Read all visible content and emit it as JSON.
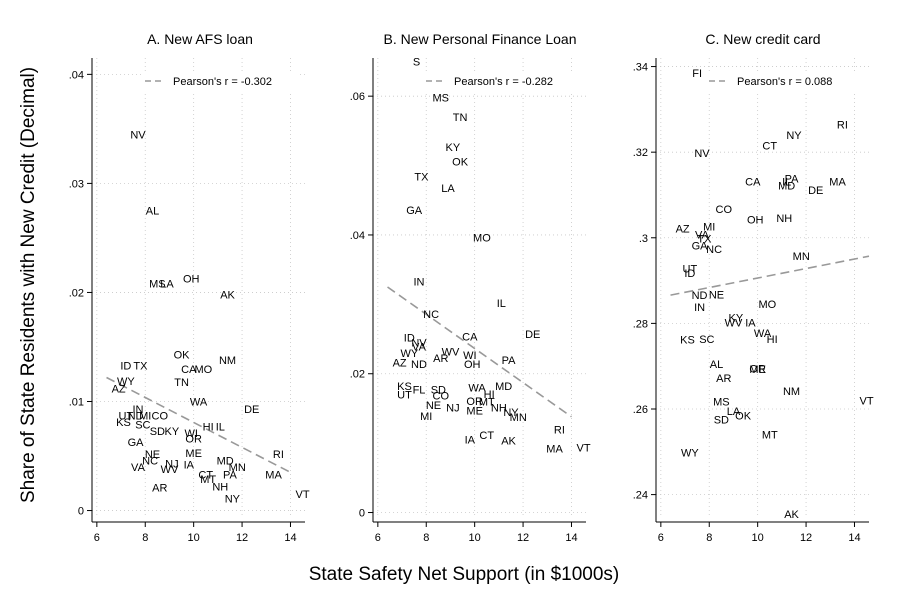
{
  "figure": {
    "ylabel": "Share of State Residents with New Credit (Decimal)",
    "xlabel": "State Safety Net Support (in $1000s)"
  },
  "chart_data": [
    {
      "type": "scatter",
      "title": "A. New AFS loan",
      "xlabel": "",
      "ylabel": "",
      "xlim": [
        5.8,
        14.6
      ],
      "ylim": [
        -0.0005,
        0.0415
      ],
      "xticks": [
        6,
        8,
        10,
        12,
        14
      ],
      "xtick_labels": [
        "6",
        "8",
        "10",
        "12",
        "14"
      ],
      "yticks": [
        0,
        0.01,
        0.02,
        0.03,
        0.04
      ],
      "ytick_labels": [
        "0",
        ".01",
        ".02",
        ".03",
        ".04"
      ],
      "grid": true,
      "legend": {
        "label": "Pearson's r = -0.302",
        "placement": "top-right"
      },
      "fit_line": {
        "x": [
          6.4,
          14.0
        ],
        "y": [
          0.0122,
          0.0035
        ]
      },
      "points": [
        {
          "label": "NV",
          "x": 7.7,
          "y": 0.0345
        },
        {
          "label": "AL",
          "x": 8.3,
          "y": 0.0275
        },
        {
          "label": "MS",
          "x": 8.5,
          "y": 0.0208
        },
        {
          "label": "LA",
          "x": 8.9,
          "y": 0.0208
        },
        {
          "label": "OH",
          "x": 9.9,
          "y": 0.0213
        },
        {
          "label": "AK",
          "x": 11.4,
          "y": 0.0198
        },
        {
          "label": "OK",
          "x": 9.5,
          "y": 0.0143
        },
        {
          "label": "NM",
          "x": 11.4,
          "y": 0.0138
        },
        {
          "label": "ID",
          "x": 7.2,
          "y": 0.0133
        },
        {
          "label": "TX",
          "x": 7.8,
          "y": 0.0133
        },
        {
          "label": "CA",
          "x": 9.8,
          "y": 0.013
        },
        {
          "label": "MO",
          "x": 10.4,
          "y": 0.013
        },
        {
          "label": "WY",
          "x": 7.2,
          "y": 0.0119
        },
        {
          "label": "TN",
          "x": 9.5,
          "y": 0.0118
        },
        {
          "label": "AZ",
          "x": 6.9,
          "y": 0.0112
        },
        {
          "label": "WA",
          "x": 10.2,
          "y": 0.01
        },
        {
          "label": "DE",
          "x": 12.4,
          "y": 0.0093
        },
        {
          "label": "IN",
          "x": 7.7,
          "y": 0.0093
        },
        {
          "label": "UT",
          "x": 7.2,
          "y": 0.0087
        },
        {
          "label": "ND",
          "x": 7.6,
          "y": 0.0087
        },
        {
          "label": "MI",
          "x": 8.0,
          "y": 0.0087
        },
        {
          "label": "CO",
          "x": 8.6,
          "y": 0.0087
        },
        {
          "label": "KS",
          "x": 7.1,
          "y": 0.0081
        },
        {
          "label": "SC",
          "x": 7.9,
          "y": 0.0079
        },
        {
          "label": "HI",
          "x": 10.6,
          "y": 0.0077
        },
        {
          "label": "IL",
          "x": 11.1,
          "y": 0.0077
        },
        {
          "label": "SD",
          "x": 8.5,
          "y": 0.0073
        },
        {
          "label": "KY",
          "x": 9.1,
          "y": 0.0073
        },
        {
          "label": "WI",
          "x": 9.9,
          "y": 0.0071
        },
        {
          "label": "GA",
          "x": 7.6,
          "y": 0.0063
        },
        {
          "label": "OR",
          "x": 10.0,
          "y": 0.0066
        },
        {
          "label": "NE",
          "x": 8.3,
          "y": 0.0052
        },
        {
          "label": "ME",
          "x": 10.0,
          "y": 0.0053
        },
        {
          "label": "RI",
          "x": 13.5,
          "y": 0.0052
        },
        {
          "label": "NC",
          "x": 8.2,
          "y": 0.0046
        },
        {
          "label": "NJ",
          "x": 9.1,
          "y": 0.0043
        },
        {
          "label": "IA",
          "x": 9.8,
          "y": 0.0042
        },
        {
          "label": "MD",
          "x": 11.3,
          "y": 0.0046
        },
        {
          "label": "VA",
          "x": 7.7,
          "y": 0.004
        },
        {
          "label": "WV",
          "x": 9.0,
          "y": 0.0038
        },
        {
          "label": "MN",
          "x": 11.8,
          "y": 0.004
        },
        {
          "label": "CT",
          "x": 10.5,
          "y": 0.0033
        },
        {
          "label": "PA",
          "x": 11.5,
          "y": 0.0033
        },
        {
          "label": "MA",
          "x": 13.3,
          "y": 0.0033
        },
        {
          "label": "MT",
          "x": 10.6,
          "y": 0.0029
        },
        {
          "label": "NH",
          "x": 11.1,
          "y": 0.0022
        },
        {
          "label": "AR",
          "x": 8.6,
          "y": 0.0021
        },
        {
          "label": "VT",
          "x": 14.5,
          "y": 0.0015
        },
        {
          "label": "NY",
          "x": 11.6,
          "y": 0.0011
        }
      ]
    },
    {
      "type": "scatter",
      "title": "B. New Personal Finance Loan",
      "xlabel": "",
      "ylabel": "",
      "xlim": [
        5.8,
        14.6
      ],
      "ylim": [
        -0.0005,
        0.0655
      ],
      "xticks": [
        6,
        8,
        10,
        12,
        14
      ],
      "xtick_labels": [
        "6",
        "8",
        "10",
        "12",
        "14"
      ],
      "yticks": [
        0,
        0.02,
        0.04,
        0.06
      ],
      "ytick_labels": [
        "0",
        ".02",
        ".04",
        ".06"
      ],
      "grid": true,
      "legend": {
        "label": "Pearson's r = -0.282",
        "placement": "top-right"
      },
      "fit_line": {
        "x": [
          6.4,
          14.0
        ],
        "y": [
          0.0325,
          0.0138
        ]
      },
      "points": [
        {
          "label": "S",
          "x": 7.6,
          "y": 0.065
        },
        {
          "label": "MS",
          "x": 8.6,
          "y": 0.0598
        },
        {
          "label": "TN",
          "x": 9.4,
          "y": 0.057
        },
        {
          "label": "KY",
          "x": 9.1,
          "y": 0.0527
        },
        {
          "label": "OK",
          "x": 9.4,
          "y": 0.0506
        },
        {
          "label": "TX",
          "x": 7.8,
          "y": 0.0484
        },
        {
          "label": "LA",
          "x": 8.9,
          "y": 0.0468
        },
        {
          "label": "GA",
          "x": 7.5,
          "y": 0.0436
        },
        {
          "label": "MO",
          "x": 10.3,
          "y": 0.0396
        },
        {
          "label": "IN",
          "x": 7.7,
          "y": 0.0333
        },
        {
          "label": "IL",
          "x": 11.1,
          "y": 0.0302
        },
        {
          "label": "NC",
          "x": 8.2,
          "y": 0.0286
        },
        {
          "label": "DE",
          "x": 12.4,
          "y": 0.0257
        },
        {
          "label": "ID",
          "x": 7.3,
          "y": 0.0252
        },
        {
          "label": "CA",
          "x": 9.8,
          "y": 0.0254
        },
        {
          "label": "NV",
          "x": 7.7,
          "y": 0.0245
        },
        {
          "label": "VA",
          "x": 7.7,
          "y": 0.0239
        },
        {
          "label": "WY",
          "x": 7.3,
          "y": 0.023
        },
        {
          "label": "WV",
          "x": 9.0,
          "y": 0.0232
        },
        {
          "label": "WI",
          "x": 9.8,
          "y": 0.0227
        },
        {
          "label": "PA",
          "x": 11.4,
          "y": 0.022
        },
        {
          "label": "AR",
          "x": 8.6,
          "y": 0.0223
        },
        {
          "label": "AZ",
          "x": 6.9,
          "y": 0.0216
        },
        {
          "label": "ND",
          "x": 7.7,
          "y": 0.0214
        },
        {
          "label": "OH",
          "x": 9.9,
          "y": 0.0214
        },
        {
          "label": "KS",
          "x": 7.1,
          "y": 0.0182
        },
        {
          "label": "FL",
          "x": 7.7,
          "y": 0.0177
        },
        {
          "label": "SD",
          "x": 8.5,
          "y": 0.0177
        },
        {
          "label": "WA",
          "x": 10.1,
          "y": 0.018
        },
        {
          "label": "MD",
          "x": 11.2,
          "y": 0.0182
        },
        {
          "label": "UT",
          "x": 7.1,
          "y": 0.017
        },
        {
          "label": "CO",
          "x": 8.6,
          "y": 0.0169
        },
        {
          "label": "HI",
          "x": 10.6,
          "y": 0.0171
        },
        {
          "label": "OR",
          "x": 10.0,
          "y": 0.0161
        },
        {
          "label": "MT",
          "x": 10.5,
          "y": 0.016
        },
        {
          "label": "NE",
          "x": 8.3,
          "y": 0.0155
        },
        {
          "label": "NJ",
          "x": 9.1,
          "y": 0.0151
        },
        {
          "label": "ME",
          "x": 10.0,
          "y": 0.0147
        },
        {
          "label": "NH",
          "x": 11.0,
          "y": 0.0151
        },
        {
          "label": "NY",
          "x": 11.5,
          "y": 0.0145
        },
        {
          "label": "MI",
          "x": 8.0,
          "y": 0.0139
        },
        {
          "label": "MN",
          "x": 11.8,
          "y": 0.0138
        },
        {
          "label": "RI",
          "x": 13.5,
          "y": 0.012
        },
        {
          "label": "CT",
          "x": 10.5,
          "y": 0.0112
        },
        {
          "label": "IA",
          "x": 9.8,
          "y": 0.0105
        },
        {
          "label": "AK",
          "x": 11.4,
          "y": 0.0104
        },
        {
          "label": "MA",
          "x": 13.3,
          "y": 0.0092
        },
        {
          "label": "VT",
          "x": 14.5,
          "y": 0.0094
        }
      ]
    },
    {
      "type": "scatter",
      "title": "C. New credit card",
      "xlabel": "",
      "ylabel": "",
      "xlim": [
        5.8,
        14.6
      ],
      "ylim": [
        0.235,
        0.342
      ],
      "xticks": [
        6,
        8,
        10,
        12,
        14
      ],
      "xtick_labels": [
        "6",
        "8",
        "10",
        "12",
        "14"
      ],
      "yticks": [
        0.24,
        0.26,
        0.28,
        0.3,
        0.32,
        0.34
      ],
      "ytick_labels": [
        ".24",
        ".26",
        ".28",
        ".3",
        ".32",
        ".34"
      ],
      "grid": true,
      "legend": {
        "label": "Pearson's r = 0.088",
        "placement": "top-right"
      },
      "fit_line": {
        "x": [
          6.4,
          14.6
        ],
        "y": [
          0.2866,
          0.2957
        ]
      },
      "points": [
        {
          "label": "FI",
          "x": 7.5,
          "y": 0.3385
        },
        {
          "label": "RI",
          "x": 13.5,
          "y": 0.3265
        },
        {
          "label": "NY",
          "x": 11.5,
          "y": 0.324
        },
        {
          "label": "CT",
          "x": 10.5,
          "y": 0.3215
        },
        {
          "label": "NV",
          "x": 7.7,
          "y": 0.3198
        },
        {
          "label": "CA",
          "x": 9.8,
          "y": 0.3132
        },
        {
          "label": "PA",
          "x": 11.4,
          "y": 0.3138
        },
        {
          "label": "MA",
          "x": 13.3,
          "y": 0.3132
        },
        {
          "label": "IL",
          "x": 11.2,
          "y": 0.3132
        },
        {
          "label": "MD",
          "x": 11.2,
          "y": 0.3122
        },
        {
          "label": "DE",
          "x": 12.4,
          "y": 0.3112
        },
        {
          "label": "CO",
          "x": 8.6,
          "y": 0.3067
        },
        {
          "label": "OH",
          "x": 9.9,
          "y": 0.3043
        },
        {
          "label": "NH",
          "x": 11.1,
          "y": 0.3046
        },
        {
          "label": "AZ",
          "x": 6.9,
          "y": 0.3022
        },
        {
          "label": "MI",
          "x": 8.0,
          "y": 0.3026
        },
        {
          "label": "VA",
          "x": 7.7,
          "y": 0.3008
        },
        {
          "label": "TX",
          "x": 7.8,
          "y": 0.2998
        },
        {
          "label": "GA",
          "x": 7.6,
          "y": 0.2982
        },
        {
          "label": "NC",
          "x": 8.2,
          "y": 0.2974
        },
        {
          "label": "MN",
          "x": 11.8,
          "y": 0.2958
        },
        {
          "label": "UT",
          "x": 7.2,
          "y": 0.2928
        },
        {
          "label": "ID",
          "x": 7.2,
          "y": 0.2918
        },
        {
          "label": "ND",
          "x": 7.6,
          "y": 0.2866
        },
        {
          "label": "NE",
          "x": 8.3,
          "y": 0.2868
        },
        {
          "label": "IN",
          "x": 7.6,
          "y": 0.2838
        },
        {
          "label": "MO",
          "x": 10.4,
          "y": 0.2845
        },
        {
          "label": "KY",
          "x": 9.1,
          "y": 0.2814
        },
        {
          "label": "WV",
          "x": 9.0,
          "y": 0.2802
        },
        {
          "label": "IA",
          "x": 9.7,
          "y": 0.2802
        },
        {
          "label": "WA",
          "x": 10.2,
          "y": 0.2778
        },
        {
          "label": "KS",
          "x": 7.1,
          "y": 0.2762
        },
        {
          "label": "SC",
          "x": 7.9,
          "y": 0.2764
        },
        {
          "label": "HI",
          "x": 10.6,
          "y": 0.2764
        },
        {
          "label": "AL",
          "x": 8.3,
          "y": 0.2705
        },
        {
          "label": "OR",
          "x": 10.0,
          "y": 0.2695
        },
        {
          "label": "ME",
          "x": 10.0,
          "y": 0.2693
        },
        {
          "label": "AR",
          "x": 8.6,
          "y": 0.2672
        },
        {
          "label": "NM",
          "x": 11.4,
          "y": 0.2642
        },
        {
          "label": "VT",
          "x": 14.5,
          "y": 0.262
        },
        {
          "label": "MS",
          "x": 8.5,
          "y": 0.2618
        },
        {
          "label": "LA",
          "x": 9.0,
          "y": 0.2595
        },
        {
          "label": "OK",
          "x": 9.4,
          "y": 0.2585
        },
        {
          "label": "SD",
          "x": 8.5,
          "y": 0.2575
        },
        {
          "label": "MT",
          "x": 10.5,
          "y": 0.254
        },
        {
          "label": "WY",
          "x": 7.2,
          "y": 0.2498
        },
        {
          "label": "AK",
          "x": 11.4,
          "y": 0.2355
        }
      ]
    }
  ]
}
